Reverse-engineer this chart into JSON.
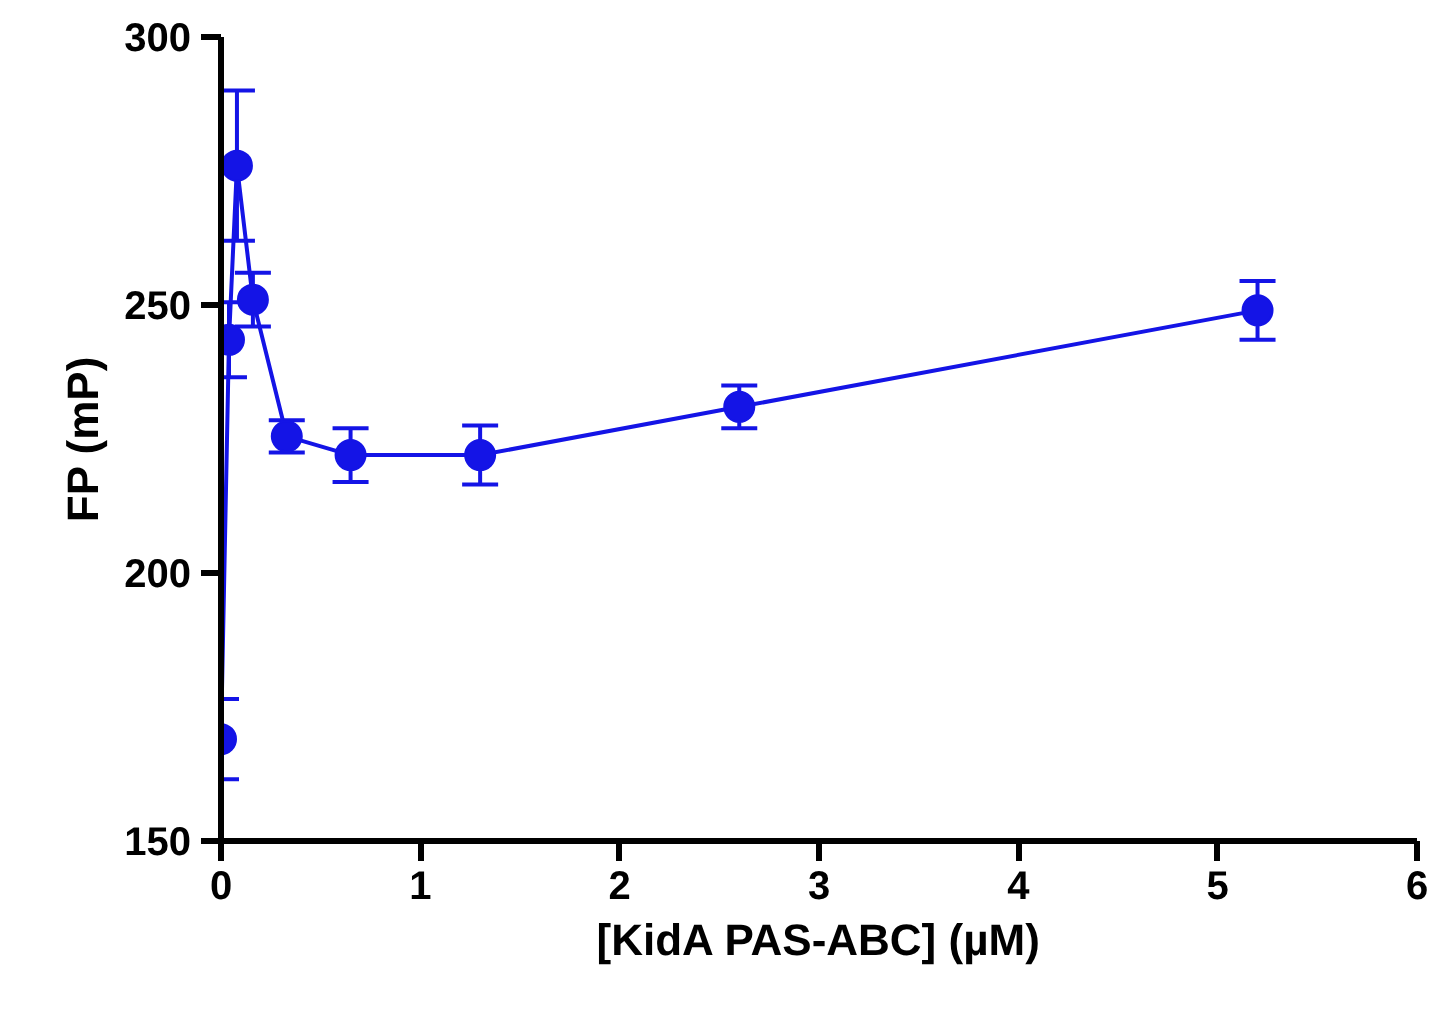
{
  "chart_data": {
    "type": "line",
    "xlabel": "[KidA PAS-ABC] (µM)",
    "ylabel": "FP (mP)",
    "x": [
      0,
      0.04,
      0.08,
      0.16,
      0.33,
      0.65,
      1.3,
      2.6,
      5.2
    ],
    "series": [
      {
        "color": "#1414e6",
        "values": [
          169,
          243.5,
          276,
          251,
          225.5,
          222,
          222,
          231,
          249
        ],
        "errors": [
          7.5,
          7,
          14,
          5,
          3,
          5,
          5.5,
          4,
          5.5
        ]
      }
    ],
    "xlim": [
      0,
      6
    ],
    "xticks": [
      0,
      1,
      2,
      3,
      4,
      5,
      6
    ],
    "ylim": [
      150,
      300
    ],
    "yticks": [
      150,
      200,
      250,
      300
    ],
    "grid": false,
    "marker": "circle",
    "line_style": "solid"
  }
}
